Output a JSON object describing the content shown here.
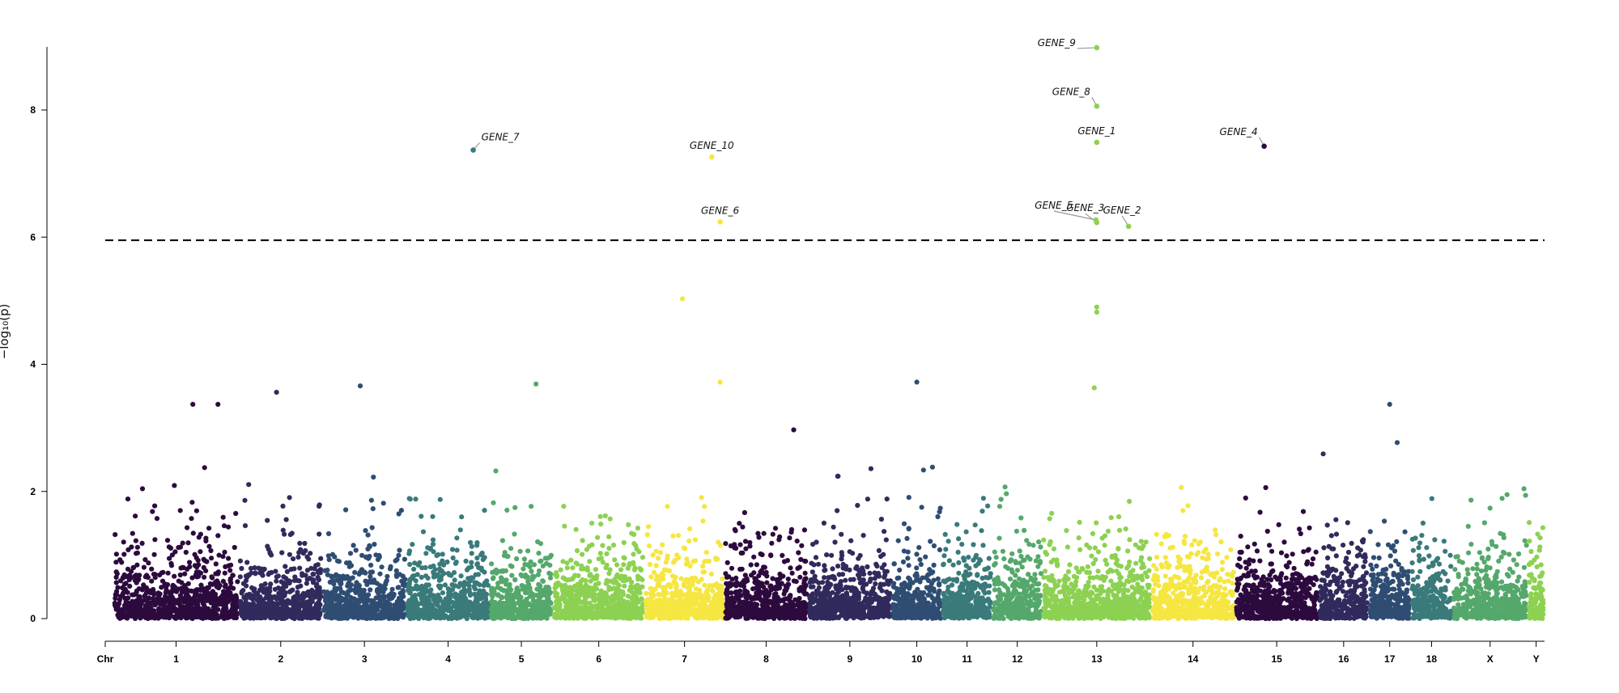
{
  "chart_data": {
    "type": "scatter",
    "subtype": "manhattan",
    "title": "",
    "xlabel": "",
    "ylabel": "−log₁₀(p)",
    "ylim": [
      0,
      9
    ],
    "yticks": [
      0,
      2,
      4,
      6,
      8
    ],
    "threshold": 5.95,
    "threshold_style": "dashed",
    "chromosomes": [
      {
        "name": "1",
        "start": 0,
        "len": 15,
        "color": "#2d0a3e"
      },
      {
        "name": "2",
        "start": 15,
        "len": 10,
        "color": "#312a5c"
      },
      {
        "name": "3",
        "start": 25,
        "len": 10,
        "color": "#2f4d72"
      },
      {
        "name": "4",
        "start": 35,
        "len": 10,
        "color": "#3a7a7a"
      },
      {
        "name": "5",
        "start": 45,
        "len": 7.5,
        "color": "#55a86b"
      },
      {
        "name": "6",
        "start": 52.5,
        "len": 11,
        "color": "#8dd152"
      },
      {
        "name": "7",
        "start": 63.5,
        "len": 9.5,
        "color": "#f5e642"
      },
      {
        "name": "8",
        "start": 73,
        "len": 10,
        "color": "#2d0a3e"
      },
      {
        "name": "9",
        "start": 83,
        "len": 10,
        "color": "#312a5c"
      },
      {
        "name": "10",
        "start": 93,
        "len": 6,
        "color": "#2f4d72"
      },
      {
        "name": "11",
        "start": 99,
        "len": 6,
        "color": "#3a7a7a"
      },
      {
        "name": "12",
        "start": 105,
        "len": 6,
        "color": "#55a86b"
      },
      {
        "name": "13",
        "start": 111,
        "len": 13,
        "color": "#8dd152"
      },
      {
        "name": "14",
        "start": 124,
        "len": 10,
        "color": "#f5e642"
      },
      {
        "name": "15",
        "start": 134,
        "len": 10,
        "color": "#2d0a3e"
      },
      {
        "name": "16",
        "start": 144,
        "len": 6,
        "color": "#312a5c"
      },
      {
        "name": "17",
        "start": 150,
        "len": 5,
        "color": "#2f4d72"
      },
      {
        "name": "18",
        "start": 155,
        "len": 5,
        "color": "#3a7a7a"
      },
      {
        "name": "X",
        "start": 160,
        "len": 9,
        "color": "#55a86b"
      },
      {
        "name": "Y",
        "start": 169,
        "len": 2,
        "color": "#8dd152"
      }
    ],
    "x_axis_first_label": "Chr",
    "x_total": 171,
    "background_points_note": "dense cloud of low -log10(p) values (0–3.7) per chromosome",
    "peaks": [
      {
        "chr": "1",
        "x": 9.5,
        "y": 3.37
      },
      {
        "chr": "1",
        "x": 12.5,
        "y": 3.37
      },
      {
        "chr": "2",
        "x": 19.5,
        "y": 3.56
      },
      {
        "chr": "3",
        "x": 29.5,
        "y": 3.66
      },
      {
        "chr": "5",
        "x": 50.5,
        "y": 3.69
      },
      {
        "chr": "7",
        "x": 68.0,
        "y": 5.03
      },
      {
        "chr": "7",
        "x": 72.5,
        "y": 3.72
      },
      {
        "chr": "10",
        "x": 96.0,
        "y": 3.72
      },
      {
        "chr": "13",
        "x": 117.5,
        "y": 4.9
      },
      {
        "chr": "13",
        "x": 117.5,
        "y": 4.82
      },
      {
        "chr": "13",
        "x": 117.2,
        "y": 3.63
      },
      {
        "chr": "17",
        "x": 152.5,
        "y": 3.37
      }
    ],
    "significant_hits": [
      {
        "gene": "GENE_7",
        "chr": "4",
        "x": 43.0,
        "y": 7.37,
        "color": "#3a7a7a",
        "label_anchor": "right"
      },
      {
        "gene": "GENE_10",
        "chr": "7",
        "x": 71.5,
        "y": 7.26,
        "color": "#f5e642",
        "label_anchor": "above"
      },
      {
        "gene": "GENE_6",
        "chr": "7",
        "x": 72.5,
        "y": 6.24,
        "color": "#f5e642",
        "label_anchor": "above"
      },
      {
        "gene": "GENE_9",
        "chr": "13",
        "x": 117.5,
        "y": 8.98,
        "color": "#8dd152",
        "label_anchor": "left"
      },
      {
        "gene": "GENE_8",
        "chr": "13",
        "x": 117.5,
        "y": 8.06,
        "color": "#8dd152",
        "label_anchor": "left"
      },
      {
        "gene": "GENE_1",
        "chr": "13",
        "x": 117.5,
        "y": 7.49,
        "color": "#8dd152",
        "label_anchor": "above"
      },
      {
        "gene": "GENE_3",
        "chr": "13",
        "x": 117.5,
        "y": 6.23,
        "color": "#8dd152",
        "label_anchor": "above-left"
      },
      {
        "gene": "GENE_5",
        "chr": "13",
        "x": 117.4,
        "y": 6.27,
        "color": "#8dd152",
        "label_anchor": "left"
      },
      {
        "gene": "GENE_2",
        "chr": "13",
        "x": 121.3,
        "y": 6.17,
        "color": "#8dd152",
        "label_anchor": "above"
      },
      {
        "gene": "GENE_4",
        "chr": "15",
        "x": 137.5,
        "y": 7.43,
        "color": "#2d0a3e",
        "label_anchor": "left"
      }
    ],
    "extra_points": [
      {
        "chr": "Y",
        "x": 170.8,
        "y": 1.43
      }
    ],
    "grid": false,
    "legend": "none"
  }
}
